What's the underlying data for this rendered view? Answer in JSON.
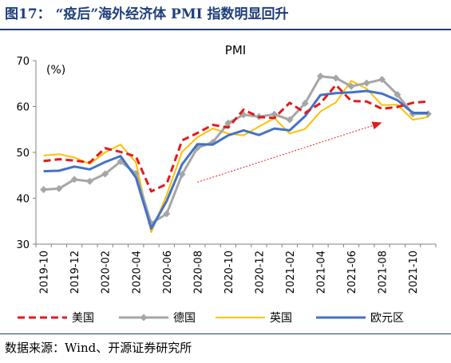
{
  "figure": {
    "title": "图17：  “疫后”海外经济体 PMI 指数明显回升",
    "source": "数据来源：Wind、开源证券研究所"
  },
  "chart_data": {
    "type": "line",
    "title": "PMI",
    "ylabel": "(%)",
    "ylim": [
      30,
      70
    ],
    "yticks": [
      30,
      40,
      50,
      60,
      70
    ],
    "x": [
      "2019-10",
      "2019-11",
      "2019-12",
      "2020-01",
      "2020-02",
      "2020-03",
      "2020-04",
      "2020-05",
      "2020-06",
      "2020-07",
      "2020-08",
      "2020-09",
      "2020-10",
      "2020-11",
      "2020-12",
      "2021-01",
      "2021-02",
      "2021-03",
      "2021-04",
      "2021-05",
      "2021-06",
      "2021-07",
      "2021-08",
      "2021-09",
      "2021-10",
      "2021-11"
    ],
    "xtick_labels": [
      "2019-10",
      "2019-12",
      "2020-02",
      "2020-04",
      "2020-06",
      "2020-08",
      "2020-10",
      "2020-12",
      "2021-02",
      "2021-04",
      "2021-06",
      "2021-08",
      "2021-10"
    ],
    "series": [
      {
        "name": "美国",
        "color": "#e31a1c",
        "style": "dashed",
        "values": [
          48.1,
          48.5,
          48.2,
          47.8,
          50.9,
          50.1,
          49.1,
          41.5,
          43.1,
          52.6,
          54.2,
          56.0,
          55.4,
          59.3,
          57.7,
          57.5,
          60.8,
          58.6,
          60.7,
          64.7,
          61.2,
          61.1,
          59.5,
          59.9,
          60.8,
          61.1
        ]
      },
      {
        "name": "德国",
        "color": "#a6a6a6",
        "style": "solid-diamond",
        "values": [
          41.9,
          42.1,
          44.1,
          43.7,
          45.3,
          48.0,
          45.4,
          34.5,
          36.6,
          45.2,
          51.0,
          52.2,
          56.4,
          58.2,
          57.8,
          58.3,
          57.1,
          60.7,
          66.6,
          66.2,
          64.4,
          65.1,
          65.9,
          62.6,
          58.4,
          58.4
        ]
      },
      {
        "name": "英国",
        "color": "#ffc000",
        "style": "solid",
        "values": [
          49.3,
          49.6,
          48.9,
          47.5,
          50.0,
          51.7,
          47.8,
          32.6,
          40.7,
          50.1,
          53.3,
          55.2,
          54.1,
          53.7,
          55.6,
          57.5,
          54.1,
          55.1,
          58.9,
          60.9,
          65.6,
          63.9,
          60.3,
          60.4,
          57.1,
          57.7
        ]
      },
      {
        "name": "欧元区",
        "color": "#4472c4",
        "style": "solid",
        "values": [
          45.9,
          46.0,
          46.9,
          46.3,
          47.9,
          49.2,
          44.5,
          33.4,
          39.4,
          47.4,
          51.8,
          51.7,
          53.7,
          54.8,
          53.8,
          55.2,
          54.8,
          57.9,
          62.5,
          62.9,
          63.1,
          63.4,
          62.8,
          61.4,
          58.6,
          58.6
        ]
      }
    ],
    "annotation": {
      "type": "trend-arrow",
      "color": "#e31a1c",
      "from": {
        "x": "2020-08",
        "y": 43.5
      },
      "to": {
        "x": "2021-08",
        "y": 56.5
      }
    },
    "grid": false,
    "legend": "bottom"
  }
}
